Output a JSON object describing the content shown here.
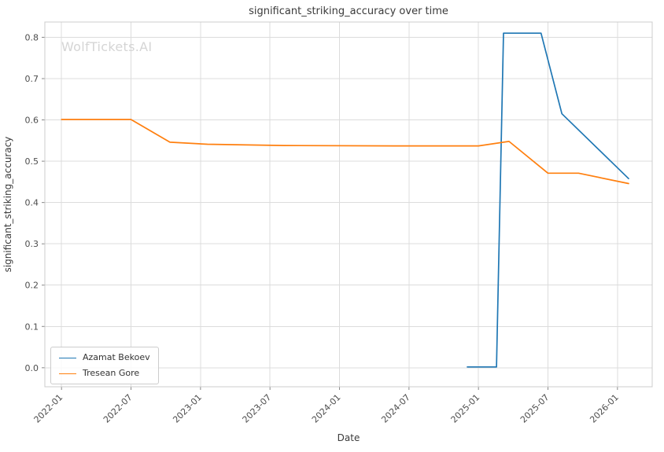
{
  "watermark": "WolfTickets.AI",
  "chart_data": {
    "type": "line",
    "title": "significant_striking_accuracy over time",
    "xlabel": "Date",
    "ylabel": "significant_striking_accuracy",
    "x_tick_labels": [
      "2022-01",
      "2022-07",
      "2023-01",
      "2023-07",
      "2024-01",
      "2024-07",
      "2025-01",
      "2025-07",
      "2026-01"
    ],
    "y_ticks": [
      0.0,
      0.1,
      0.2,
      0.3,
      0.4,
      0.5,
      0.6,
      0.7,
      0.8
    ],
    "xlim": [
      2021.88,
      2026.25
    ],
    "ylim": [
      -0.046,
      0.837
    ],
    "grid": true,
    "legend_position": "lower left",
    "style": {
      "grid_color": "#dcdcdc",
      "spine_color": "#cccccc",
      "tick_color": "#888888",
      "tick_text_color": "#4d4d4d",
      "title_color": "#3a3a3a"
    },
    "series": [
      {
        "name": "Azamat Bekoev",
        "color": "#1f77b4",
        "points": [
          [
            2024.92,
            0.002
          ],
          [
            2025.13,
            0.002
          ],
          [
            2025.18,
            0.81
          ],
          [
            2025.45,
            0.81
          ],
          [
            2025.6,
            0.615
          ],
          [
            2026.08,
            0.458
          ]
        ]
      },
      {
        "name": "Tresean Gore",
        "color": "#ff7f0e",
        "points": [
          [
            2022.0,
            0.601
          ],
          [
            2022.5,
            0.601
          ],
          [
            2022.78,
            0.546
          ],
          [
            2023.05,
            0.541
          ],
          [
            2023.6,
            0.538
          ],
          [
            2024.4,
            0.537
          ],
          [
            2025.0,
            0.537
          ],
          [
            2025.22,
            0.548
          ],
          [
            2025.5,
            0.471
          ],
          [
            2025.72,
            0.471
          ],
          [
            2026.08,
            0.446
          ]
        ]
      }
    ]
  }
}
